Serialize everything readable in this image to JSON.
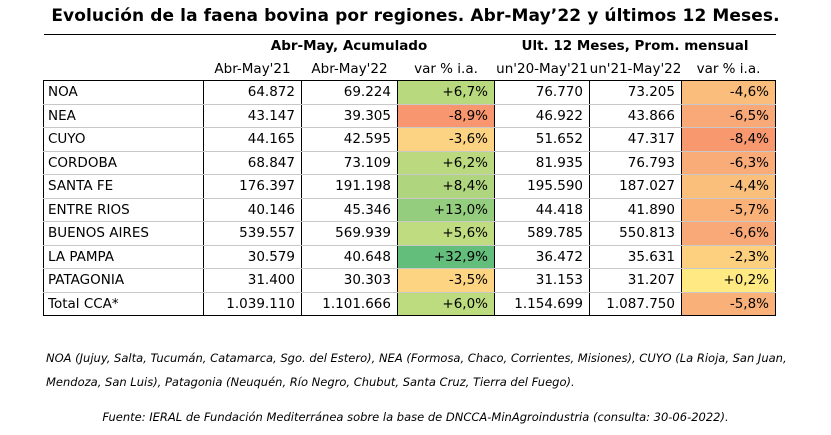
{
  "title": "Evolución de la faena bovina por regiones. Abr-May’22 y últimos 12 Meses.",
  "group_headers": {
    "acumulado": "Abr-May, Acumulado",
    "ult12": "Ult. 12 Meses, Prom. mensual"
  },
  "columns": [
    "Abr-May'21",
    "Abr-May'22",
    "var % i.a.",
    "un'20-May'21",
    "un'21-May'22",
    "var % i.a."
  ],
  "rows": [
    {
      "region": "NOA",
      "a21": "64.872",
      "a22": "69.224",
      "va": "+6,7%",
      "va_color": "#b9d97e",
      "u21": "76.770",
      "u22": "73.205",
      "vu": "-4,6%",
      "vu_color": "#fbbd7c"
    },
    {
      "region": "NEA",
      "a21": "43.147",
      "a22": "39.305",
      "va": "-8,9%",
      "va_color": "#f8966f",
      "u21": "46.922",
      "u22": "43.866",
      "vu": "-6,5%",
      "vu_color": "#f9a977"
    },
    {
      "region": "CUYO",
      "a21": "44.165",
      "a22": "42.595",
      "va": "-3,6%",
      "va_color": "#fcd382",
      "u21": "51.652",
      "u22": "47.317",
      "vu": "-8,4%",
      "vu_color": "#f8986f"
    },
    {
      "region": "CORDOBA",
      "a21": "68.847",
      "a22": "73.109",
      "va": "+6,2%",
      "va_color": "#bbda7f",
      "u21": "81.935",
      "u22": "76.793",
      "vu": "-6,3%",
      "vu_color": "#f9ab78"
    },
    {
      "region": "SANTA FE",
      "a21": "176.397",
      "a22": "191.198",
      "va": "+8,4%",
      "va_color": "#afd57e",
      "u21": "195.590",
      "u22": "187.027",
      "vu": "-4,4%",
      "vu_color": "#fbbf7c"
    },
    {
      "region": "ENTRE RIOS",
      "a21": "40.146",
      "a22": "45.346",
      "va": "+13,0%",
      "va_color": "#94cd7e",
      "u21": "44.418",
      "u22": "41.890",
      "vu": "-5,7%",
      "vu_color": "#fab279"
    },
    {
      "region": "BUENOS AIRES",
      "a21": "539.557",
      "a22": "569.939",
      "va": "+5,6%",
      "va_color": "#c0dc80",
      "u21": "589.785",
      "u22": "550.813",
      "vu": "-6,6%",
      "vu_color": "#f9a877"
    },
    {
      "region": "LA PAMPA",
      "a21": "30.579",
      "a22": "40.648",
      "va": "+32,9%",
      "va_color": "#63be7b",
      "u21": "36.472",
      "u22": "35.631",
      "vu": "-2,3%",
      "vu_color": "#fcd07f"
    },
    {
      "region": "PATAGONIA",
      "a21": "31.400",
      "a22": "30.303",
      "va": "-3,5%",
      "va_color": "#fdd482",
      "u21": "31.153",
      "u22": "31.207",
      "vu": "+0,2%",
      "vu_color": "#fee983"
    }
  ],
  "total": {
    "region": "Total CCA*",
    "a21": "1.039.110",
    "a22": "1.101.666",
    "va": "+6,0%",
    "va_color": "#bddb7f",
    "u21": "1.154.699",
    "u22": "1.087.750",
    "vu": "-5,8%",
    "vu_color": "#fab179"
  },
  "note": "NOA (Jujuy, Salta, Tucumán, Catamarca, Sgo. del Estero), NEA (Formosa, Chaco, Corrientes, Misiones), CUYO (La Rioja, San Juan, Mendoza, San Luis), Patagonia (Neuquén, Río Negro, Chubut, Santa Cruz, Tierra del Fuego).",
  "source": "Fuente: IERAL de Fundación Mediterránea sobre la base de DNCCA-MinAgroindustria (consulta: 30-06-2022)."
}
